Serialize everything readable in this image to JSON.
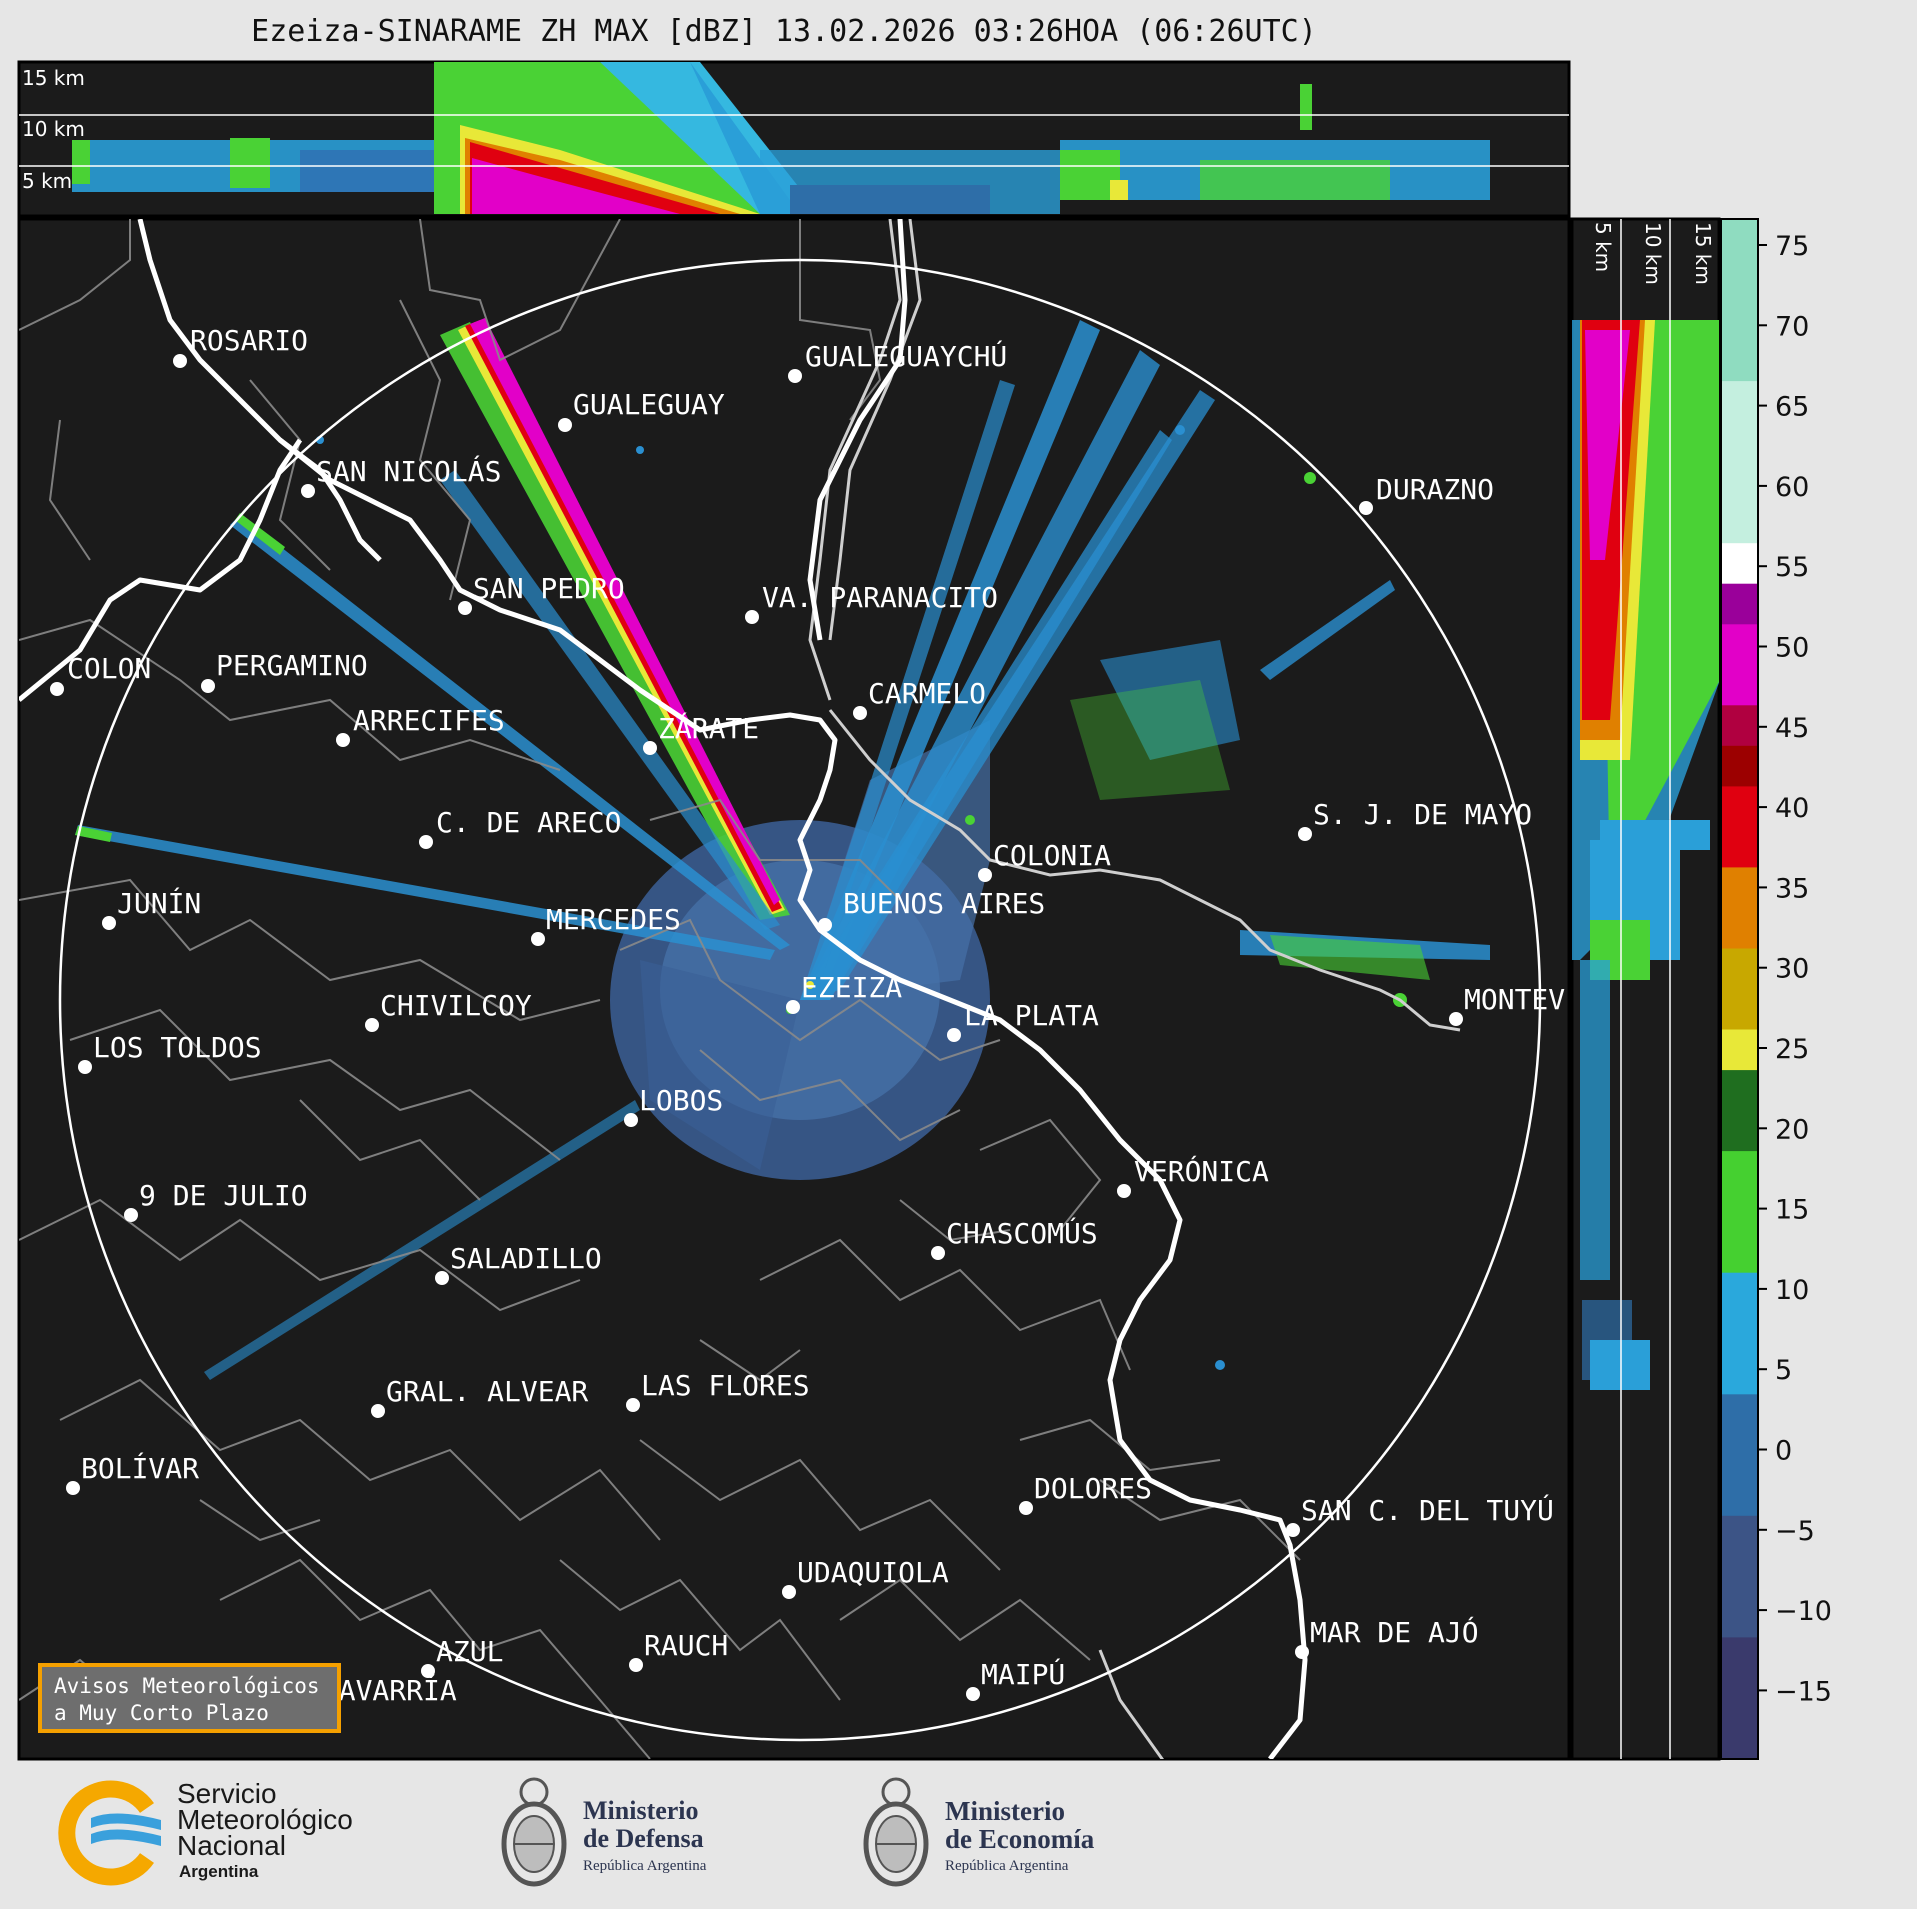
{
  "title": "Ezeiza-SINARAME ZH MAX [dBZ] 13.02.2026 03:26HOA (06:26UTC)",
  "top_panel": {
    "height_labels": [
      "15 km",
      "10 km",
      "5 km"
    ]
  },
  "side_panel": {
    "height_labels": [
      "5 km",
      "10 km",
      "15 km"
    ]
  },
  "colorbar": {
    "ticks": [
      "75",
      "70",
      "65",
      "60",
      "55",
      "50",
      "45",
      "40",
      "35",
      "30",
      "25",
      "20",
      "15",
      "10",
      "5",
      "0",
      "−5",
      "−10",
      "−15"
    ],
    "colors": {
      "mint": "#8fdcc0",
      "light_mint": "#c4efdf",
      "white": "#ffffff",
      "purple": "#9a009a",
      "magenta": "#e200c8",
      "crimson": "#b00040",
      "dark_red": "#9c0000",
      "red": "#e00010",
      "orange": "#e08000",
      "gold": "#c8a800",
      "yellow": "#e8e838",
      "dark_green": "#1f6e1f",
      "green": "#45d030",
      "light_blue": "#2aa8dc",
      "steel_blue": "#2e6ea8",
      "slate": "#3c5486",
      "navy": "#3a3a6c"
    }
  },
  "map": {
    "background": "#1b1b1b",
    "cities": [
      {
        "name": "ROSARIO"
      },
      {
        "name": "GUALEGUAYCHÚ"
      },
      {
        "name": "GUALEGUAY"
      },
      {
        "name": "SAN NICOLÁS"
      },
      {
        "name": "DURAZNO"
      },
      {
        "name": "SAN PEDRO"
      },
      {
        "name": "VA. PARANACITO"
      },
      {
        "name": "COLON"
      },
      {
        "name": "PERGAMINO"
      },
      {
        "name": "CARMELO"
      },
      {
        "name": "ARRECIFES"
      },
      {
        "name": "ZÁRATE"
      },
      {
        "name": "S. J. DE MAYO"
      },
      {
        "name": "C. DE ARECO"
      },
      {
        "name": "COLONIA"
      },
      {
        "name": "JUNÍN"
      },
      {
        "name": "BUENOS AIRES"
      },
      {
        "name": "MERCEDES"
      },
      {
        "name": "EZEIZA"
      },
      {
        "name": "MONTEV"
      },
      {
        "name": "CHIVILCOY"
      },
      {
        "name": "LA PLATA"
      },
      {
        "name": "LOS TOLDOS"
      },
      {
        "name": "LOBOS"
      },
      {
        "name": "VERÓNICA"
      },
      {
        "name": "9 DE JULIO"
      },
      {
        "name": "CHASCOMÚS"
      },
      {
        "name": "SALADILLO"
      },
      {
        "name": "GRAL. ALVEAR"
      },
      {
        "name": "LAS FLORES"
      },
      {
        "name": "BOLÍVAR"
      },
      {
        "name": "DOLORES"
      },
      {
        "name": "SAN C. DEL TUYÚ"
      },
      {
        "name": "UDAQUIOLA"
      },
      {
        "name": "MAR DE AJÓ"
      },
      {
        "name": "AZUL"
      },
      {
        "name": "RAUCH"
      },
      {
        "name": "MAIPÚ"
      },
      {
        "name": "OLAVARRÍA"
      }
    ]
  },
  "avisos": {
    "line1": "Avisos Meteorológicos",
    "line2": "a Muy Corto Plazo"
  },
  "logos": {
    "smn": {
      "line1": "Servicio",
      "line2": "Meteorológico",
      "line3": "Nacional",
      "line4": "Argentina"
    },
    "defensa": {
      "line1": "Ministerio",
      "line2": "de Defensa",
      "line3": "República Argentina"
    },
    "economia": {
      "line1": "Ministerio",
      "line2": "de Economía",
      "line3": "República Argentina"
    }
  }
}
